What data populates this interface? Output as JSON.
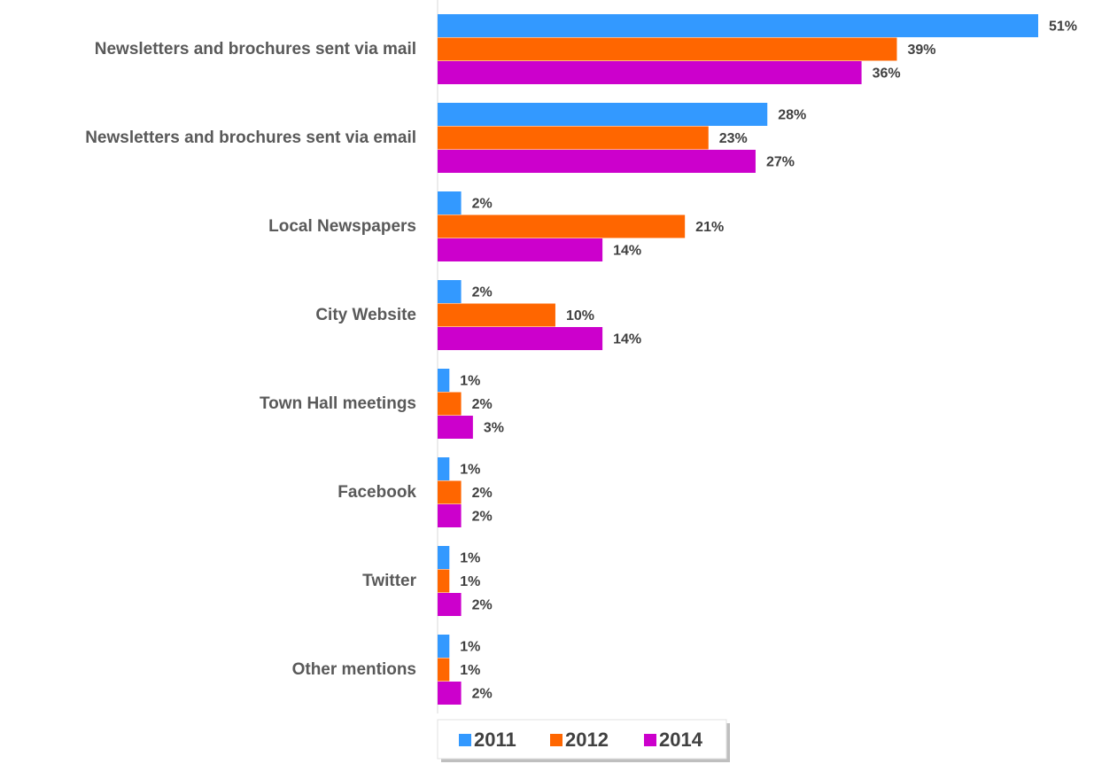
{
  "chart_data": {
    "type": "bar",
    "orientation": "horizontal",
    "categories": [
      "Newsletters and brochures sent via mail",
      "Newsletters and brochures sent via email",
      "Local Newspapers",
      "City Website",
      "Town Hall meetings",
      "Facebook",
      "Twitter",
      "Other mentions"
    ],
    "series": [
      {
        "name": "2011",
        "color": "#3399ff",
        "values": [
          51,
          28,
          2,
          2,
          1,
          1,
          1,
          1
        ],
        "value_labels": [
          "51%",
          "28%",
          "2%",
          "2%",
          "1%",
          "1%",
          "1%",
          "1%"
        ]
      },
      {
        "name": "2012",
        "color": "#ff6600",
        "values": [
          39,
          23,
          21,
          10,
          2,
          2,
          1,
          1
        ],
        "value_labels": [
          "39%",
          "23%",
          "21%",
          "10%",
          "2%",
          "2%",
          "1%",
          "1%"
        ]
      },
      {
        "name": "2014",
        "color": "#cc00cc",
        "values": [
          36,
          27,
          14,
          14,
          3,
          2,
          2,
          2
        ],
        "value_labels": [
          "36%",
          "27%",
          "14%",
          "14%",
          "3%",
          "2%",
          "2%",
          "2%"
        ]
      }
    ],
    "legend": "bottom"
  }
}
